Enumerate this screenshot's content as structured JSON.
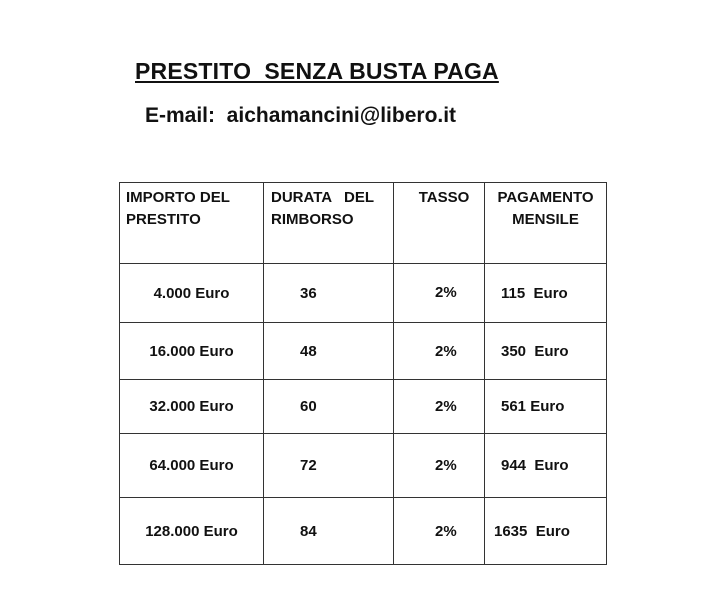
{
  "title": "PRESTITO  SENZA BUSTA PAGA",
  "email": "E-mail:  aichamancini@libero.it",
  "table": {
    "headers": [
      "IMPORTO DEL\nPRESTITO",
      "DURATA   DEL\nRIMBORSO",
      "TASSO",
      "PAGAMENTO\nMENSILE"
    ],
    "rows": [
      [
        "4.000 Euro",
        "36",
        "2%",
        "115  Euro"
      ],
      [
        "16.000 Euro",
        "48",
        "2%",
        "350  Euro"
      ],
      [
        "32.000 Euro",
        "60",
        "2%",
        "561 Euro"
      ],
      [
        "64.000 Euro",
        "72",
        "2%",
        "944  Euro"
      ],
      [
        "128.000 Euro",
        "84",
        "2%",
        "1635  Euro"
      ]
    ]
  }
}
